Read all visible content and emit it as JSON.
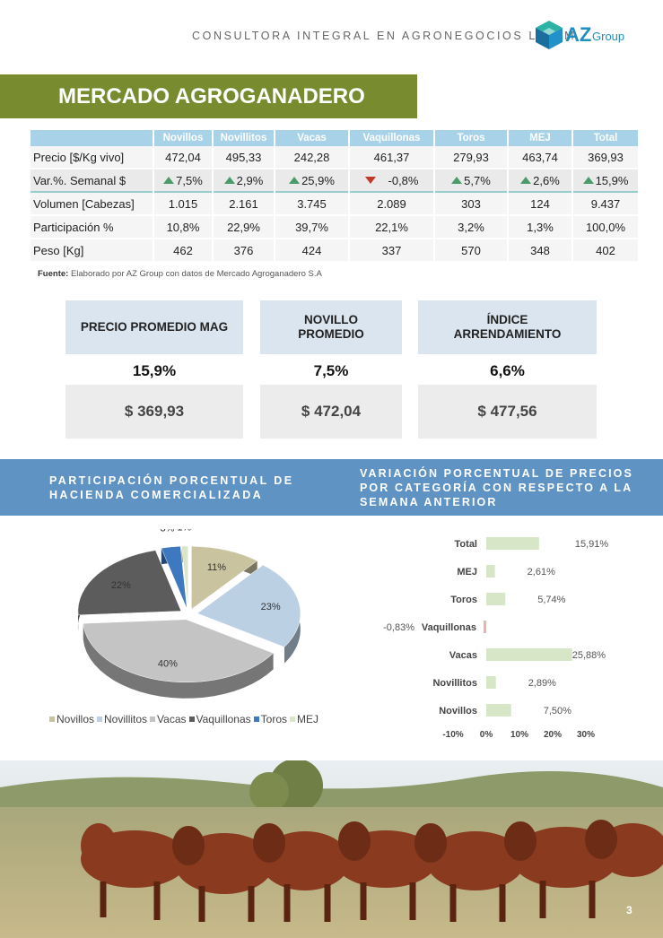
{
  "header": {
    "tagline": "CONSULTORA INTEGRAL EN AGRONEGOCIOS LATAM",
    "logo_text": "AZ",
    "logo_sub": "Group",
    "logo_icon": "cube-logo-icon"
  },
  "section_title": "MERCADO AGROGANADERO",
  "market_table": {
    "columns": [
      "Novillos",
      "Novillitos",
      "Vacas",
      "Vaquillonas",
      "Toros",
      "MEJ",
      "Total"
    ],
    "rows": [
      {
        "label": "Precio [$/Kg vivo]",
        "values": [
          "472,04",
          "495,33",
          "242,28",
          "461,37",
          "279,93",
          "463,74",
          "369,93"
        ]
      },
      {
        "label": "Var.%. Semanal $",
        "values": [
          "7,5%",
          "2,9%",
          "25,9%",
          "-0,8%",
          "5,7%",
          "2,6%",
          "15,9%"
        ],
        "trend": [
          "up",
          "up",
          "up",
          "down",
          "up",
          "up",
          "up"
        ]
      },
      {
        "label": "Volumen [Cabezas]",
        "values": [
          "1.015",
          "2.161",
          "3.745",
          "2.089",
          "303",
          "124",
          "9.437"
        ]
      },
      {
        "label": "Participación %",
        "values": [
          "10,8%",
          "22,9%",
          "39,7%",
          "22,1%",
          "3,2%",
          "1,3%",
          "100,0%"
        ]
      },
      {
        "label": "Peso [Kg]",
        "values": [
          "462",
          "376",
          "424",
          "337",
          "570",
          "348",
          "402"
        ]
      }
    ],
    "source_bold": "Fuente:",
    "source_text": " Elaborado por AZ Group con datos de Mercado Agroganadero S.A"
  },
  "kpis": [
    {
      "title": "PRECIO PROMEDIO MAG",
      "pct": "15,9%",
      "value": "$ 369,93"
    },
    {
      "title": "NOVILLO PROMEDIO",
      "pct": "7,5%",
      "value": "$ 472,04"
    },
    {
      "title": "ÍNDICE ARRENDAMIENTO",
      "pct": "6,6%",
      "value": "$ 477,56"
    }
  ],
  "band": {
    "left_title": "PARTICIPACIÓN PORCENTUAL DE HACIENDA COMERCIALIZADA",
    "right_title": "VARIACIÓN PORCENTUAL DE PRECIOS POR CATEGORÍA CON RESPECTO A LA SEMANA ANTERIOR"
  },
  "chart_data": [
    {
      "type": "pie",
      "categories": [
        "Novillos",
        "Novillitos",
        "Vacas",
        "Vaquillonas",
        "Toros",
        "MEJ"
      ],
      "values": [
        11,
        23,
        40,
        22,
        3,
        1
      ],
      "labels": [
        "11%",
        "23%",
        "40%",
        "22%",
        "3%",
        "1%"
      ],
      "colors": [
        "#c9c3a0",
        "#bcd0e4",
        "#c4c4c4",
        "#5c5c5c",
        "#3e78c0",
        "#d9e6c8"
      ],
      "legend": "bottom"
    },
    {
      "type": "bar",
      "orientation": "horizontal",
      "categories": [
        "Total",
        "MEJ",
        "Toros",
        "Vaquillonas",
        "Vacas",
        "Novillitos",
        "Novillos"
      ],
      "values": [
        15.91,
        2.61,
        5.74,
        -0.83,
        25.88,
        2.89,
        7.5
      ],
      "labels": [
        "15,91%",
        "2,61%",
        "5,74%",
        "-0,83%",
        "25,88%",
        "2,89%",
        "7,50%"
      ],
      "xticks": [
        "-10%",
        "0%",
        "10%",
        "20%",
        "30%"
      ],
      "xlim": [
        -10,
        30
      ],
      "color": "#d6e6c6",
      "negative_color": "#e8b4b0"
    }
  ],
  "page_number": "3"
}
